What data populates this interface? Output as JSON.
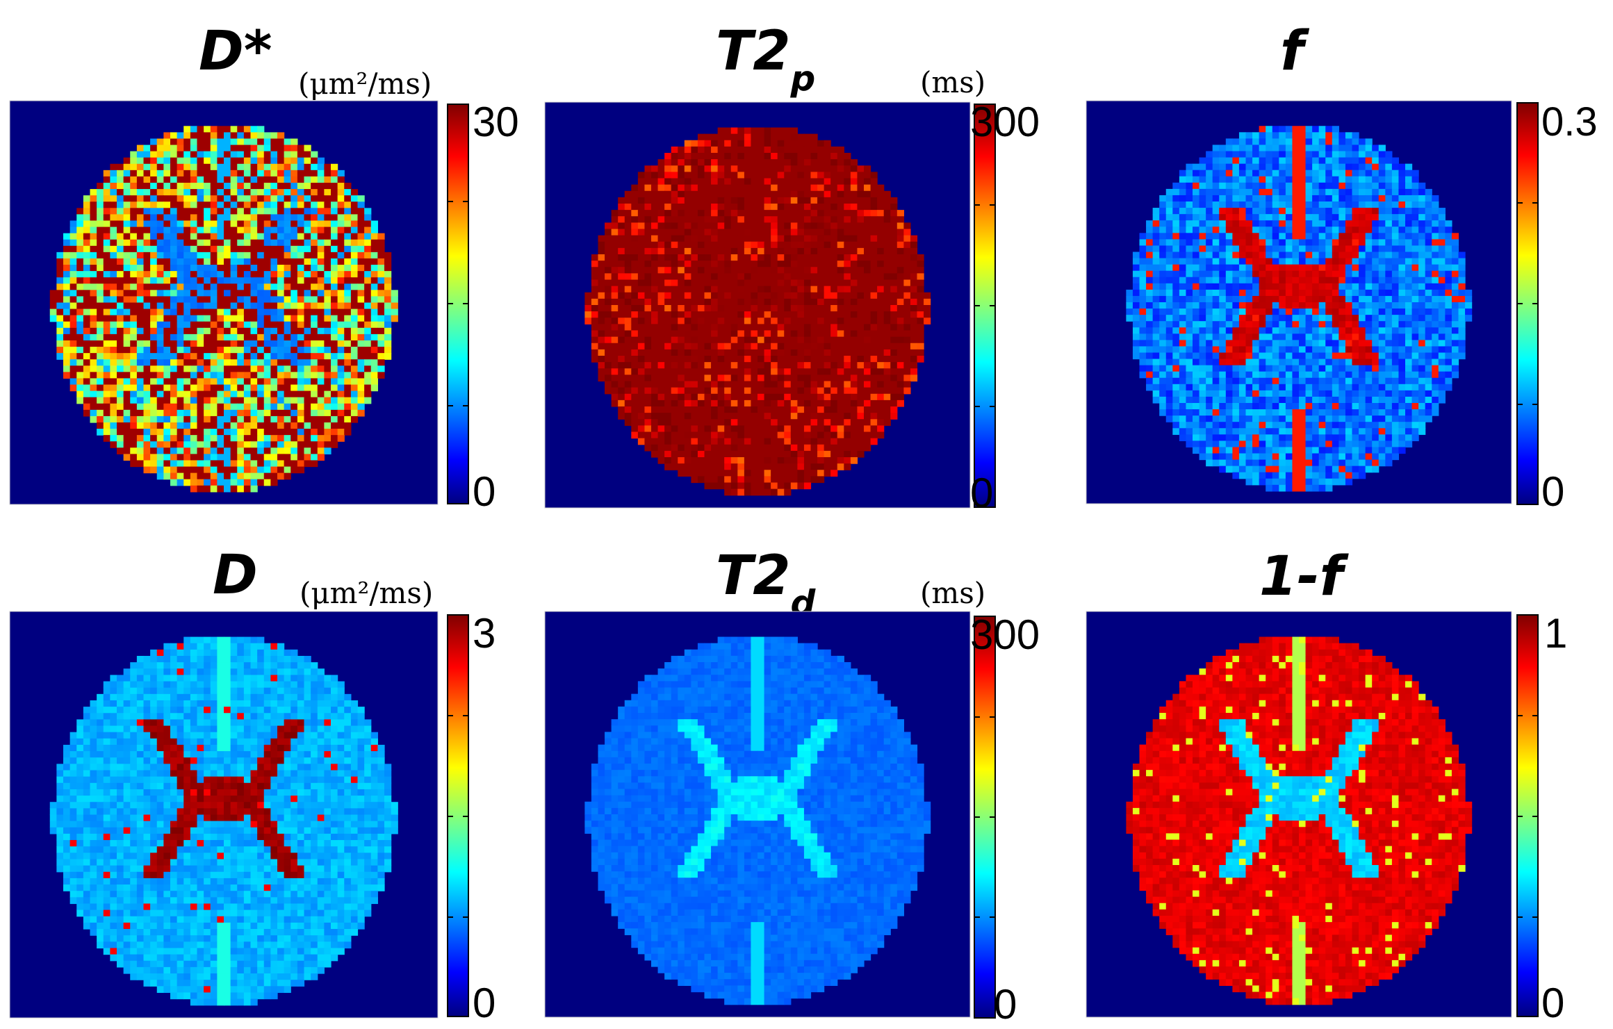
{
  "colors": {
    "background": "#000080",
    "colormap": [
      "#000080",
      "#0000ff",
      "#00ffff",
      "#ffff00",
      "#ff0000",
      "#800000"
    ]
  },
  "colormap_name": "jet",
  "panels": [
    {
      "id": "dstar",
      "title_main": "D*",
      "title_sub": "",
      "unit": "(μm²/ms)",
      "cbar_max": "30",
      "cbar_min": "0",
      "pattern": {
        "seed": 11,
        "base": 0.55,
        "noise": 0.6,
        "ventricle": 0.25,
        "ventricleWidth": 0.09,
        "midline": 0.3,
        "highFrac": 0.35,
        "high": 0.97
      }
    },
    {
      "id": "t2p",
      "title_main": "T2",
      "title_sub": "p",
      "unit": "(ms)",
      "cbar_max": "300",
      "cbar_min": "0",
      "pattern": {
        "seed": 23,
        "base": 0.95,
        "noise": 0.35,
        "ventricle": 0.98,
        "ventricleWidth": 0.1,
        "midline": 0.98,
        "highFrac": 0.6,
        "high": 0.98
      }
    },
    {
      "id": "f",
      "title_main": "f",
      "title_sub": "",
      "unit": "",
      "cbar_max": "0.3",
      "cbar_min": "0",
      "pattern": {
        "seed": 37,
        "base": 0.24,
        "noise": 0.18,
        "ventricle": 0.92,
        "ventricleWidth": 0.07,
        "midline": 0.85,
        "highFrac": 0.04,
        "high": 0.85
      }
    },
    {
      "id": "d",
      "title_main": "D",
      "title_sub": "",
      "unit": "(μm²/ms)",
      "cbar_max": "3",
      "cbar_min": "0",
      "pattern": {
        "seed": 53,
        "base": 0.3,
        "noise": 0.08,
        "ventricle": 0.97,
        "ventricleWidth": 0.06,
        "midline": 0.4,
        "highFrac": 0.02,
        "high": 0.88
      }
    },
    {
      "id": "t2d",
      "title_main": "T2",
      "title_sub": "d",
      "unit": "(ms)",
      "cbar_max": "300",
      "cbar_min": "0",
      "pattern": {
        "seed": 71,
        "base": 0.23,
        "noise": 0.04,
        "ventricle": 0.36,
        "ventricleWidth": 0.06,
        "midline": 0.34,
        "highFrac": 0.0,
        "high": 0.5
      }
    },
    {
      "id": "onef",
      "title_main": "1-f",
      "title_sub": "",
      "unit": "",
      "cbar_max": "1",
      "cbar_min": "0",
      "pattern": {
        "seed": 89,
        "base": 0.9,
        "noise": 0.06,
        "ventricle": 0.33,
        "ventricleWidth": 0.07,
        "midline": 0.55,
        "highFrac": 0.05,
        "high": 0.6
      }
    }
  ]
}
